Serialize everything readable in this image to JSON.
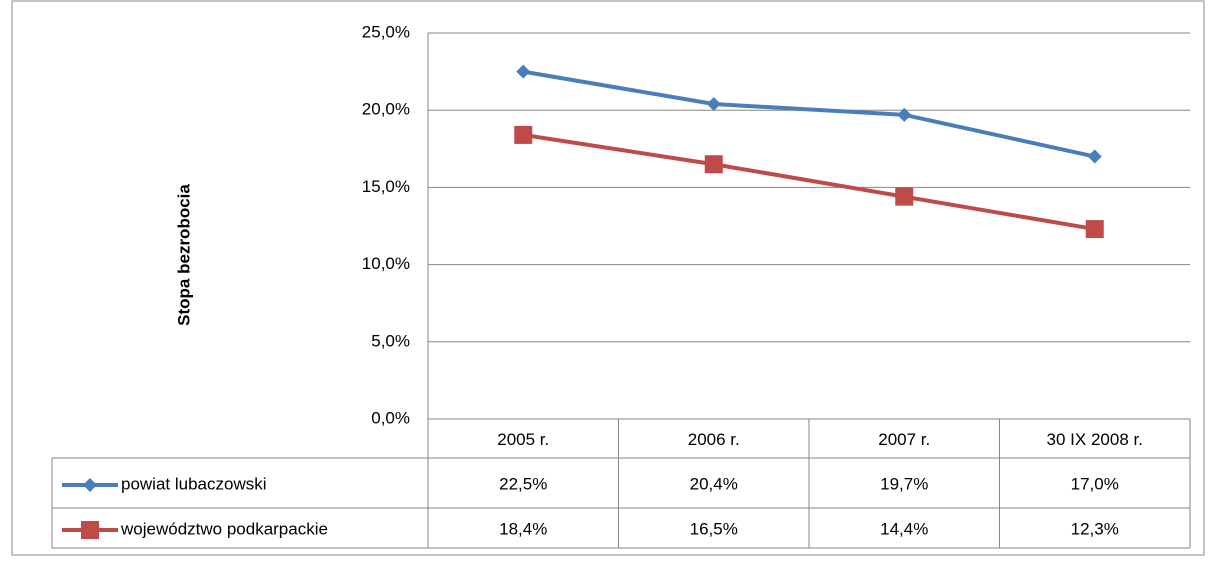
{
  "chart_data": {
    "type": "line",
    "y_label": "Stopa bezrobocia",
    "categories": [
      "2005 r.",
      "2006 r.",
      "2007 r.",
      "30 IX 2008 r."
    ],
    "series": [
      {
        "name": "powiat lubaczowski",
        "color": "#4a7ebb",
        "marker": "diamond",
        "values": [
          22.5,
          20.4,
          19.7,
          17.0
        ],
        "value_labels": [
          "22,5%",
          "20,4%",
          "19,7%",
          "17,0%"
        ]
      },
      {
        "name": "województwo podkarpackie",
        "color": "#be4b48",
        "marker": "square",
        "values": [
          18.4,
          16.5,
          14.4,
          12.3
        ],
        "value_labels": [
          "18,4%",
          "16,5%",
          "14,4%",
          "12,3%"
        ]
      }
    ],
    "ylim": [
      0,
      25
    ],
    "yticks": [
      {
        "value": 0,
        "label": "0,0%"
      },
      {
        "value": 5,
        "label": "5,0%"
      },
      {
        "value": 10,
        "label": "10,0%"
      },
      {
        "value": 15,
        "label": "15,0%"
      },
      {
        "value": 20,
        "label": "20,0%"
      },
      {
        "value": 25,
        "label": "25,0%"
      }
    ],
    "grid": true,
    "data_table": true
  }
}
